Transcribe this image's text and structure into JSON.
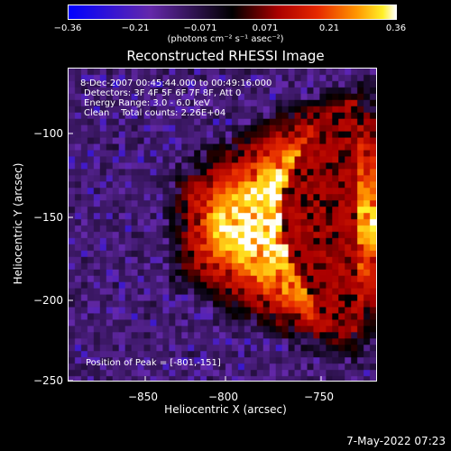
{
  "chart_data": {
    "type": "heatmap",
    "title": "Reconstructed RHESSI Image",
    "xlabel": "Heliocentric X (arcsec)",
    "ylabel": "Heliocentric Y (arcsec)",
    "xlim": [
      -895,
      -810
    ],
    "ylim": [
      -252,
      -64
    ],
    "xticks": [
      -850,
      -800,
      -750
    ],
    "xtick_labels": [
      "−850",
      "−800",
      "−750"
    ],
    "yticks": [
      -100,
      -150,
      -200,
      -250
    ],
    "ytick_labels": [
      "−100",
      "−150",
      "−200",
      "−250"
    ],
    "colorbar": {
      "min": -0.36,
      "max": 0.36,
      "ticks": [
        -0.36,
        -0.21,
        -0.071,
        0.071,
        0.21,
        0.36
      ],
      "tick_labels": [
        "−0.36",
        "−0.21",
        "−0.071",
        "0.071",
        "0.21",
        "0.36"
      ],
      "units": "(photons cm⁻² s⁻¹ asec⁻²)",
      "colormap": "blue-purple-black-red-yellow-white"
    },
    "annotations": [
      "8-Dec-2007 00:45:44.000 to 00:49:16.000",
      "Detectors: 3F 4F 5F 6F 7F 8F, Att 0",
      "Energy Range: 3.0 - 6.0 keV",
      "Clean    Total counts: 2.26E+04"
    ],
    "peak_label": "Position of Peak = [-801,-151]",
    "peak": {
      "x": -801,
      "y": -151,
      "value": 0.36
    }
  },
  "timestamp": "7-May-2022 07:23"
}
